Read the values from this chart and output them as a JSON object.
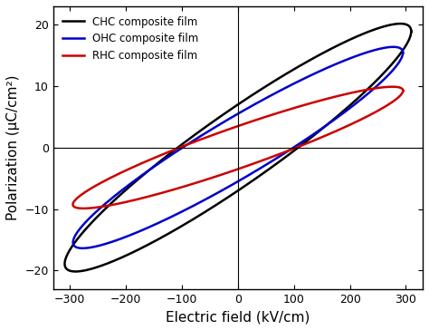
{
  "xlabel": "Electric field (kV/cm)",
  "ylabel": "Polarization (μC/cm²)",
  "xlim": [
    -330,
    330
  ],
  "ylim": [
    -23,
    23
  ],
  "xticks": [
    -300,
    -200,
    -100,
    0,
    100,
    200,
    300
  ],
  "yticks": [
    -20,
    -10,
    0,
    10,
    20
  ],
  "legend": [
    {
      "label": "CHC composite film",
      "color": "#000000"
    },
    {
      "label": "OHC composite film",
      "color": "#0000cc"
    },
    {
      "label": "RHC composite film",
      "color": "#cc0000"
    }
  ],
  "loops": {
    "CHC": {
      "color": "#000000",
      "lw": 1.8,
      "a": 310,
      "b": 7.0,
      "tilt_deg": 3.5,
      "Ecenter": 0,
      "Pcenter": 0
    },
    "OHC": {
      "color": "#0000cc",
      "lw": 1.8,
      "a": 295,
      "b": 5.5,
      "tilt_deg": 3.0,
      "Ecenter": 0,
      "Pcenter": 0
    },
    "RHC": {
      "color": "#cc0000",
      "lw": 1.8,
      "a": 295,
      "b": 3.5,
      "tilt_deg": 1.8,
      "Ecenter": 0,
      "Pcenter": 0
    }
  }
}
